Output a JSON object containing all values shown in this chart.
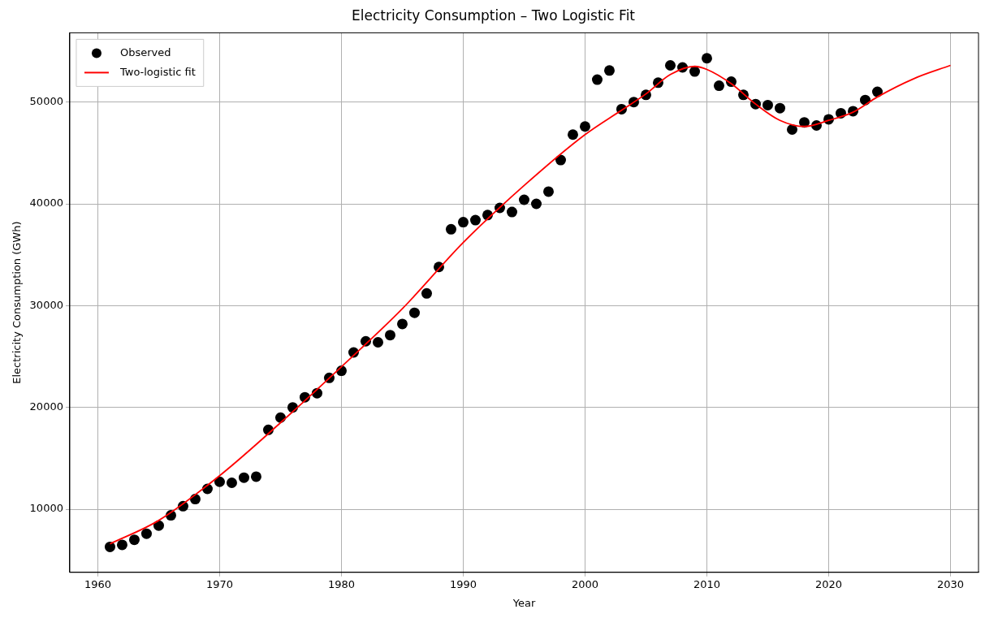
{
  "chart_data": {
    "type": "scatter",
    "title": "Electricity Consumption – Two Logistic Fit",
    "xlabel": "Year",
    "ylabel": "Electricity Consumption (GWh)",
    "xlim": [
      1957.7,
      2032.3
    ],
    "xticks": [
      1960,
      1970,
      1980,
      1990,
      2000,
      2010,
      2020,
      2030
    ],
    "ylim": [
      3800,
      56800
    ],
    "yticks": [
      10000,
      20000,
      30000,
      40000,
      50000
    ],
    "grid": true,
    "legend": "top left",
    "marker": "circle",
    "series": [
      {
        "name": "Observed",
        "type": "scatter",
        "color": "#000000",
        "x": [
          1961,
          1962,
          1963,
          1964,
          1965,
          1966,
          1967,
          1968,
          1969,
          1970,
          1971,
          1972,
          1973,
          1974,
          1975,
          1976,
          1977,
          1978,
          1979,
          1980,
          1981,
          1982,
          1983,
          1984,
          1985,
          1986,
          1987,
          1988,
          1989,
          1990,
          1991,
          1992,
          1993,
          1994,
          1995,
          1996,
          1997,
          1998,
          1999,
          2000,
          2001,
          2002,
          2003,
          2004,
          2005,
          2006,
          2007,
          2008,
          2009,
          2010,
          2011,
          2012,
          2013,
          2014,
          2015,
          2016,
          2017,
          2018,
          2019,
          2020,
          2021,
          2022,
          2023,
          2024
        ],
        "values": [
          6300,
          6500,
          7000,
          7600,
          8400,
          9400,
          10300,
          11000,
          12000,
          12700,
          12600,
          13100,
          13200,
          17800,
          19000,
          20000,
          21000,
          21400,
          22900,
          23600,
          25400,
          26500,
          26400,
          27100,
          28200,
          29300,
          31200,
          33800,
          37500,
          38200,
          38400,
          38900,
          39600,
          39200,
          40400,
          40000,
          41200,
          44300,
          46800,
          47600,
          52200,
          53100,
          49300,
          50000,
          50700,
          51900,
          53600,
          53400,
          53000,
          54300,
          51600,
          52000,
          50700,
          49800,
          49700,
          49400,
          47300,
          48000,
          47700,
          48300,
          48900,
          49100,
          50200,
          51000
        ]
      },
      {
        "name": "Two-logistic fit",
        "type": "line",
        "color": "#ff0000",
        "marker": "none",
        "line_style": "solid",
        "x": [
          1961,
          1965,
          1970,
          1975,
          1980,
          1985,
          1990,
          1995,
          2000,
          2003,
          2005,
          2007,
          2009,
          2010,
          2012,
          2014,
          2016,
          2018,
          2020,
          2022,
          2024,
          2027,
          2030
        ],
        "values": [
          6600,
          8900,
          13300,
          18500,
          24000,
          29700,
          36200,
          41800,
          46800,
          49200,
          50800,
          52700,
          53500,
          53200,
          51800,
          49800,
          48200,
          47600,
          48200,
          49000,
          50500,
          52300,
          53600
        ]
      }
    ]
  }
}
